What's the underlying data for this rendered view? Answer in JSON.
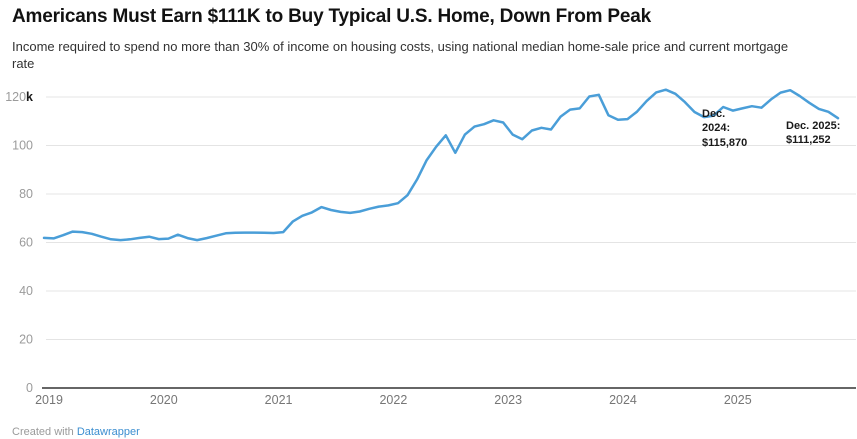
{
  "header": {
    "title": "Americans Must Earn $111K to Buy Typical U.S. Home, Down From Peak",
    "subtitle": "Income required to spend no more than 30% of income on housing costs, using national median home-sale price and current mortgage rate"
  },
  "chart_data": {
    "type": "line",
    "title": "Americans Must Earn $111K to Buy Typical U.S. Home, Down From Peak",
    "unit": "USD, thousands (k)",
    "x_start": "2019-01",
    "x_end": "2025-12",
    "x_tick_labels": [
      "2019",
      "2020",
      "2021",
      "2022",
      "2023",
      "2024",
      "2025"
    ],
    "y_ticks": [
      0,
      20,
      40,
      60,
      80,
      100,
      120
    ],
    "y_top_unit_suffix": "k",
    "ylim": [
      0,
      120
    ],
    "grid": "horizontal",
    "legend": "none",
    "series": [
      {
        "name": "Income required to afford median-priced U.S. home ($ thousands, monthly)",
        "monthly_values": [
          61.9,
          61.7,
          63.0,
          64.5,
          64.3,
          63.6,
          62.4,
          61.3,
          61.0,
          61.3,
          61.9,
          62.4,
          61.4,
          61.6,
          63.2,
          61.8,
          61.0,
          61.8,
          62.8,
          63.8,
          64.0,
          64.1,
          64.1,
          64.0,
          63.9,
          64.3,
          68.6,
          71.0,
          72.4,
          74.6,
          73.4,
          72.6,
          72.2,
          72.8,
          73.9,
          74.8,
          75.3,
          76.2,
          79.5,
          86.0,
          94.0,
          99.5,
          104.2,
          97.0,
          104.5,
          107.8,
          108.8,
          110.4,
          109.5,
          104.5,
          102.6,
          106.2,
          107.3,
          106.6,
          111.9,
          114.8,
          115.3,
          120.2,
          120.9,
          112.5,
          110.6,
          110.9,
          114.0,
          118.4,
          121.9,
          123.0,
          121.3,
          117.9,
          113.8,
          111.7,
          112.3,
          115.87,
          114.4,
          115.3,
          116.2,
          115.6,
          119.0,
          121.8,
          122.8,
          120.4,
          117.6,
          115.1,
          113.9,
          111.25
        ]
      }
    ],
    "annotations": [
      {
        "label": "Dec.\n2024:\n$115,870",
        "month": "2024-12",
        "value_usd": 115870
      },
      {
        "label": "Dec. 2025:\n$111,252",
        "month": "2025-12",
        "value_usd": 111252
      }
    ],
    "colors": {
      "line": "#4A9ED8",
      "grid": "#E4E4E4",
      "axis": "#333333",
      "tick_text": "#9B9B9B",
      "unit_text": "#1A1A1A",
      "axis_text": "#767676"
    }
  },
  "footer": {
    "created_with": "Created with ",
    "link": "Datawrapper"
  }
}
